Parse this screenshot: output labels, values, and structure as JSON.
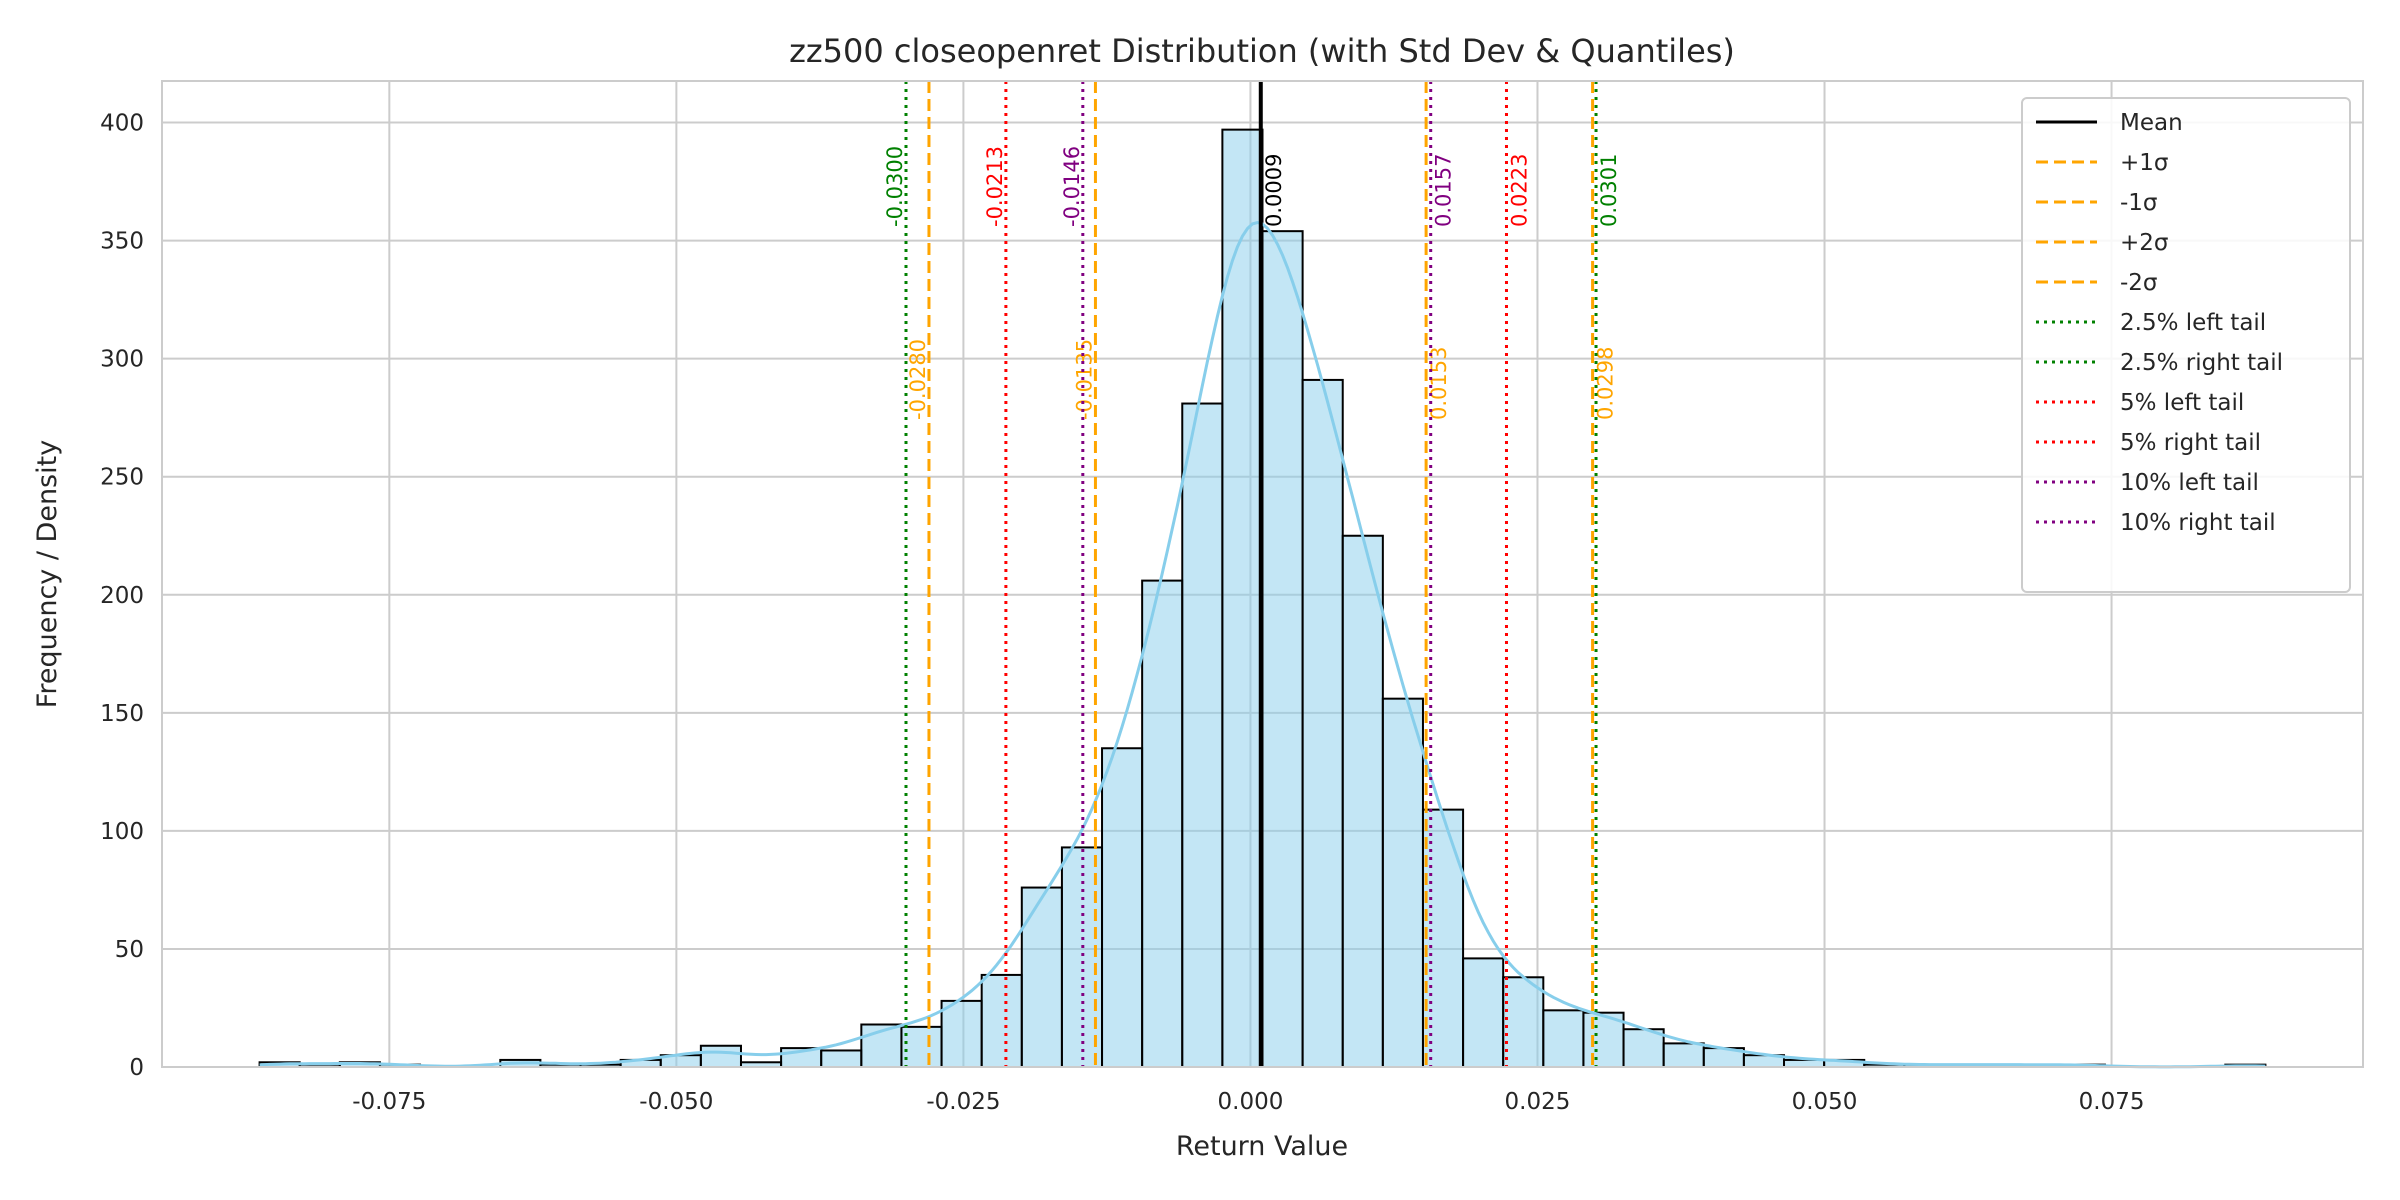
{
  "chart_data": {
    "type": "bar",
    "title": "zz500 closeopenret Distribution (with Std Dev & Quantiles)",
    "xlabel": "Return Value",
    "ylabel": "Frequency / Density",
    "xlim": [
      -0.0948,
      0.0969
    ],
    "ylim": [
      0,
      417.6
    ],
    "xticks": [
      -0.075,
      -0.05,
      -0.025,
      0.0,
      0.025,
      0.05,
      0.075
    ],
    "xtick_labels": [
      "-0.075",
      "-0.050",
      "-0.025",
      "0.000",
      "0.025",
      "0.050",
      "0.075"
    ],
    "yticks": [
      0,
      50,
      100,
      150,
      200,
      250,
      300,
      350,
      400
    ],
    "ytick_labels": [
      "0",
      "50",
      "100",
      "150",
      "200",
      "250",
      "300",
      "350",
      "400"
    ],
    "grid": true,
    "bin_start": -0.0863,
    "bin_width": 0.003494,
    "counts": [
      2,
      1,
      2,
      1,
      0,
      0,
      3,
      1,
      1,
      3,
      5,
      9,
      2,
      8,
      7,
      18,
      17,
      28,
      39,
      76,
      93,
      135,
      206,
      281,
      397,
      354,
      291,
      225,
      156,
      109,
      46,
      38,
      24,
      23,
      16,
      10,
      8,
      5,
      3,
      3,
      1,
      1,
      1,
      1,
      1,
      1,
      0,
      0,
      0,
      1
    ],
    "kde": {
      "shown": true,
      "bandwidth": 0.0029
    },
    "bar_color": "#87ceeb",
    "kde_color": "#87ceeb",
    "lines": [
      {
        "name": "Mean",
        "value": 0.0009,
        "label": "0.0009",
        "color": "#000000",
        "style": "solid",
        "legend": "Mean"
      },
      {
        "name": "plus-1-sigma",
        "value": 0.0153,
        "label": "0.0153",
        "color": "#ffa500",
        "style": "dashed",
        "legend": "+1σ"
      },
      {
        "name": "minus-1-sigma",
        "value": -0.0135,
        "label": "-0.0135",
        "color": "#ffa500",
        "style": "dashed",
        "legend": "-1σ"
      },
      {
        "name": "plus-2-sigma",
        "value": 0.0298,
        "label": "0.0298",
        "color": "#ffa500",
        "style": "dashed",
        "legend": "+2σ"
      },
      {
        "name": "minus-2-sigma",
        "value": -0.028,
        "label": "-0.0280",
        "color": "#ffa500",
        "style": "dashed",
        "legend": "-2σ"
      },
      {
        "name": "q2-5-left",
        "value": -0.03,
        "label": "-0.0300",
        "color": "#008000",
        "style": "dotted",
        "legend": "2.5% left tail"
      },
      {
        "name": "q2-5-right",
        "value": 0.0301,
        "label": "0.0301",
        "color": "#008000",
        "style": "dotted",
        "legend": "2.5% right tail"
      },
      {
        "name": "q5-left",
        "value": -0.0213,
        "label": "-0.0213",
        "color": "#ff0000",
        "style": "dotted",
        "legend": "5% left tail"
      },
      {
        "name": "q5-right",
        "value": 0.0223,
        "label": "0.0223",
        "color": "#ff0000",
        "style": "dotted",
        "legend": "5% right tail"
      },
      {
        "name": "q10-left",
        "value": -0.0146,
        "label": "-0.0146",
        "color": "#800080",
        "style": "dotted",
        "legend": "10% left tail"
      },
      {
        "name": "q10-right",
        "value": 0.0157,
        "label": "0.0157",
        "color": "#800080",
        "style": "dotted",
        "legend": "10% right tail"
      }
    ],
    "legend_position": "top-right"
  }
}
